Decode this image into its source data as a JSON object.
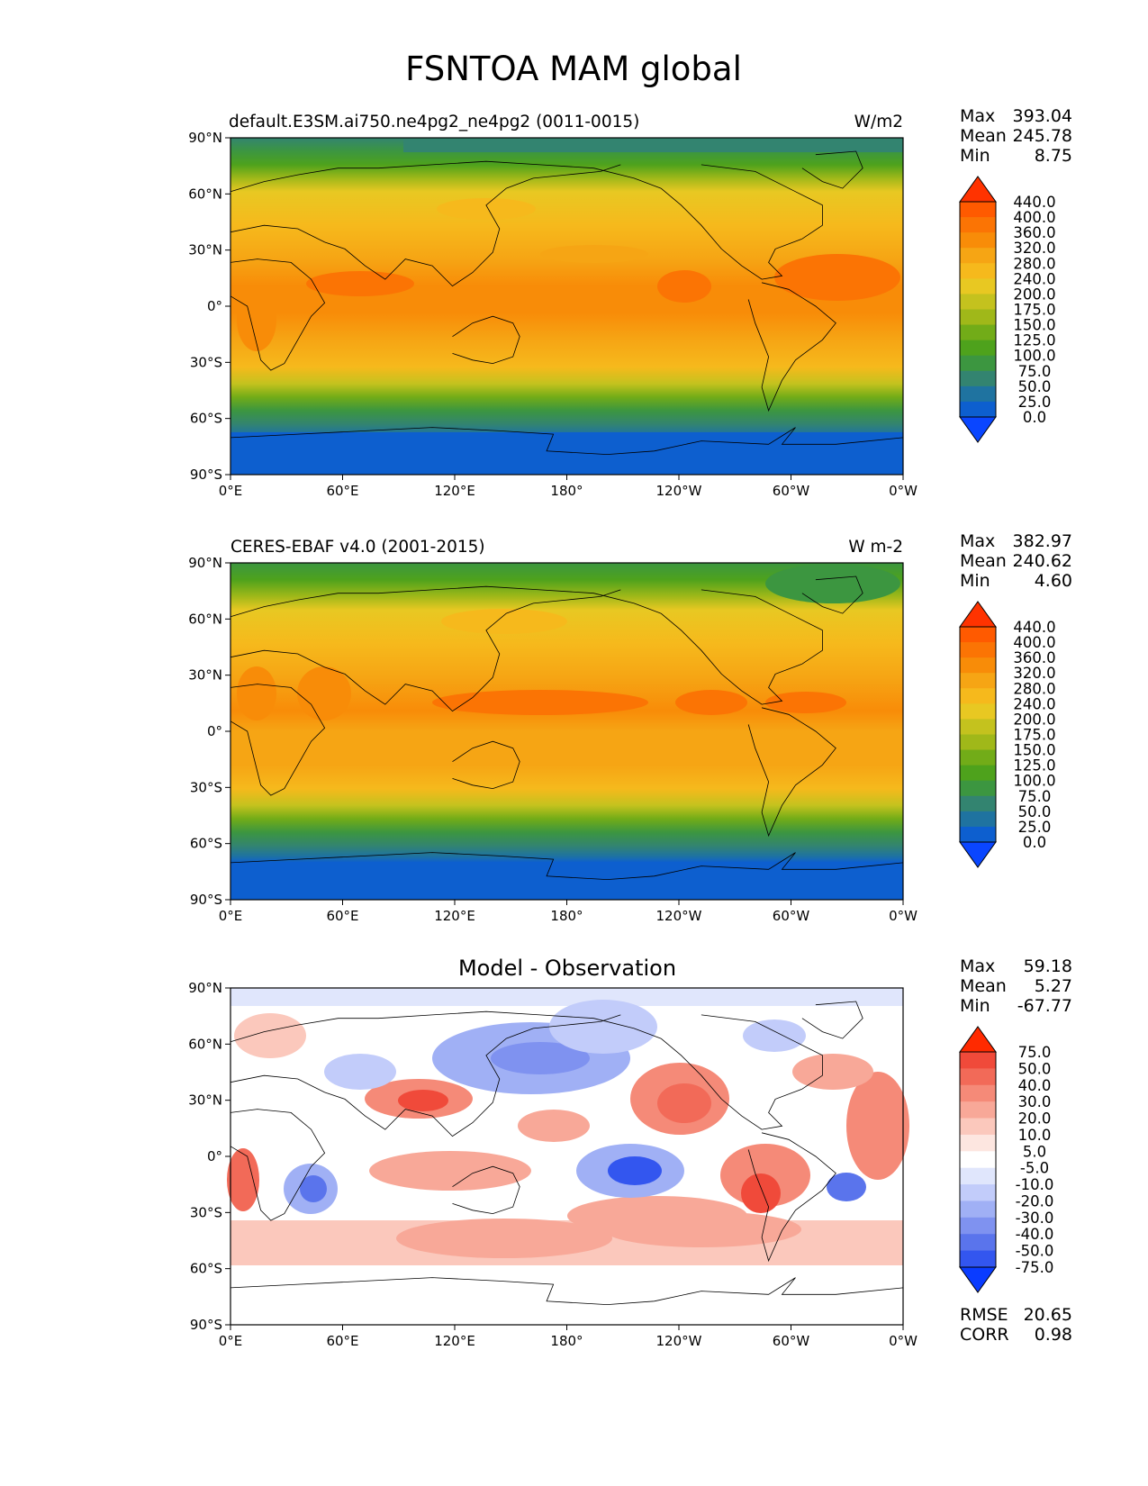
{
  "figure": {
    "title": "FSNTOA MAM global"
  },
  "axes": {
    "lat_labels": [
      "90°N",
      "60°N",
      "30°N",
      "0°",
      "30°S",
      "60°S",
      "90°S"
    ],
    "lon_labels": [
      "0°E",
      "60°E",
      "120°E",
      "180°",
      "120°W",
      "60°W",
      "0°W"
    ]
  },
  "panels": [
    {
      "id": "model",
      "left_title": "default.E3SM.ai750.ne4pg2_ne4pg2 (0011-0015)",
      "right_title": "W/m2",
      "center_title": "",
      "stats": {
        "max_label": "Max",
        "max": "393.04",
        "mean_label": "Mean",
        "mean": "245.78",
        "min_label": "Min",
        "min": "8.75"
      },
      "colorbar": {
        "labels": [
          "440.0",
          "400.0",
          "360.0",
          "320.0",
          "280.0",
          "240.0",
          "200.0",
          "175.0",
          "150.0",
          "125.0",
          "100.0",
          "75.0",
          "50.0",
          "25.0",
          "0.0"
        ],
        "colors_top_to_bottom": [
          "#ff3300",
          "#ff5a00",
          "#fb7404",
          "#f88c08",
          "#f6a514",
          "#f6b91c",
          "#e8c822",
          "#c4c21e",
          "#a0b819",
          "#72ac18",
          "#4ea21c",
          "#3c9640",
          "#338470",
          "#1f73a0",
          "#0d5fcf",
          "#0a46ff"
        ]
      }
    },
    {
      "id": "obs",
      "left_title": "CERES-EBAF v4.0 (2001-2015)",
      "right_title": "W m-2",
      "center_title": "",
      "stats": {
        "max_label": "Max",
        "max": "382.97",
        "mean_label": "Mean",
        "mean": "240.62",
        "min_label": "Min",
        "min": "4.60"
      },
      "colorbar": {
        "labels": [
          "440.0",
          "400.0",
          "360.0",
          "320.0",
          "280.0",
          "240.0",
          "200.0",
          "175.0",
          "150.0",
          "125.0",
          "100.0",
          "75.0",
          "50.0",
          "25.0",
          "0.0"
        ],
        "colors_top_to_bottom": [
          "#ff3300",
          "#ff5a00",
          "#fb7404",
          "#f88c08",
          "#f6a514",
          "#f6b91c",
          "#e8c822",
          "#c4c21e",
          "#a0b819",
          "#72ac18",
          "#4ea21c",
          "#3c9640",
          "#338470",
          "#1f73a0",
          "#0d5fcf",
          "#0a46ff"
        ]
      }
    },
    {
      "id": "diff",
      "left_title": "",
      "right_title": "",
      "center_title": "Model - Observation",
      "stats": {
        "max_label": "Max",
        "max": "59.18",
        "mean_label": "Mean",
        "mean": "5.27",
        "min_label": "Min",
        "min": "-67.77"
      },
      "metrics": {
        "rmse_label": "RMSE",
        "rmse": "20.65",
        "corr_label": "CORR",
        "corr": "0.98"
      },
      "colorbar": {
        "labels": [
          "75.0",
          "50.0",
          "40.0",
          "30.0",
          "20.0",
          "10.0",
          "5.0",
          "-5.0",
          "-10.0",
          "-20.0",
          "-30.0",
          "-40.0",
          "-50.0",
          "-75.0"
        ],
        "colors_top_to_bottom": [
          "#ff2a00",
          "#f04a3a",
          "#f26a58",
          "#f58a78",
          "#f8a898",
          "#fbc8bc",
          "#fde6e0",
          "#ffffff",
          "#e0e6fc",
          "#c2ccfa",
          "#a0b0f5",
          "#7f92f0",
          "#5a74ec",
          "#3356ef",
          "#0a3cff"
        ]
      }
    }
  ],
  "map_colors": {
    "ocean_polar": "#0d5fcf",
    "coast": "#000000"
  }
}
